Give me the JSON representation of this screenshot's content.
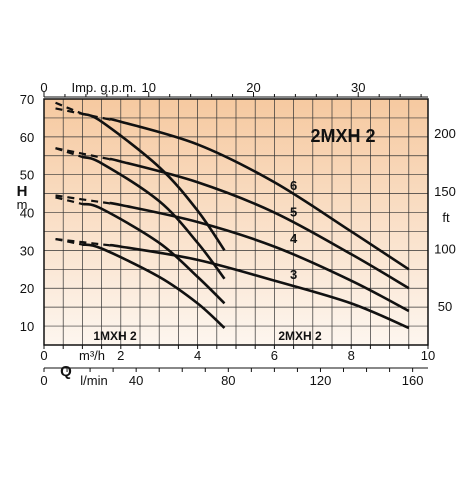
{
  "chart_data": {
    "type": "line",
    "title": "2MXH 2",
    "bg_gradient": [
      "#f6c9a0",
      "#fdf6ef"
    ],
    "ylabel_left": [
      "H",
      "m"
    ],
    "ylabel_right": "ft",
    "top_axis_label": "Imp. g.p.m.",
    "q_label": "Q",
    "unit_m3h": "m³/h",
    "unit_lmin": "l/min",
    "region_labels": [
      "1MXH 2",
      "2MXH 2"
    ],
    "xlim_m3h": [
      0,
      10
    ],
    "ylim_m": [
      5,
      70
    ],
    "ticks": {
      "left": [
        "10",
        "20",
        "30",
        "40",
        "50",
        "60",
        "70"
      ],
      "right": [
        "50",
        "100",
        "150",
        "200"
      ],
      "top": [
        "0",
        "10",
        "20",
        "30"
      ],
      "bottom_m3h": [
        "0",
        "2",
        "4",
        "6",
        "8",
        "10"
      ],
      "bottom_lmin": [
        "0",
        "40",
        "80",
        "120",
        "160"
      ]
    },
    "series": [
      {
        "name": "6",
        "points": [
          [
            0.3,
            67.5
          ],
          [
            2,
            64
          ],
          [
            4,
            58
          ],
          [
            6,
            48
          ],
          [
            8,
            35
          ],
          [
            9.5,
            25
          ]
        ],
        "dashed_until": 1.7
      },
      {
        "name": "5",
        "points": [
          [
            0.3,
            57
          ],
          [
            2,
            53.5
          ],
          [
            4,
            48
          ],
          [
            6,
            40
          ],
          [
            8,
            29
          ],
          [
            9.5,
            20
          ]
        ],
        "dashed_until": 1.7
      },
      {
        "name": "4",
        "points": [
          [
            0.3,
            44.5
          ],
          [
            2,
            42
          ],
          [
            4,
            37.5
          ],
          [
            6,
            31
          ],
          [
            8,
            22
          ],
          [
            9.5,
            14
          ]
        ],
        "dashed_until": 1.7
      },
      {
        "name": "3",
        "points": [
          [
            0.3,
            33
          ],
          [
            2,
            31
          ],
          [
            4,
            27.5
          ],
          [
            6,
            22
          ],
          [
            8,
            16
          ],
          [
            9.5,
            9.5
          ]
        ],
        "dashed_until": 1.7
      },
      {
        "points": [
          [
            0.3,
            69
          ],
          [
            1.5,
            64
          ],
          [
            3,
            52
          ],
          [
            4,
            40.5
          ],
          [
            4.7,
            30
          ]
        ],
        "dashed_until": 1.0
      },
      {
        "points": [
          [
            0.3,
            57
          ],
          [
            1.5,
            53
          ],
          [
            3,
            43
          ],
          [
            4,
            32
          ],
          [
            4.7,
            22.5
          ]
        ],
        "dashed_until": 1.0
      },
      {
        "points": [
          [
            0.3,
            44
          ],
          [
            1.5,
            41
          ],
          [
            3,
            32
          ],
          [
            4,
            23
          ],
          [
            4.7,
            16
          ]
        ],
        "dashed_until": 1.0
      },
      {
        "points": [
          [
            0.3,
            33
          ],
          [
            1.5,
            30.5
          ],
          [
            3,
            23
          ],
          [
            4,
            16
          ],
          [
            4.7,
            9.5
          ]
        ],
        "dashed_until": 1.0
      }
    ],
    "curve_labels": [
      {
        "text": "6",
        "at": [
          6.5,
          47
        ]
      },
      {
        "text": "5",
        "at": [
          6.5,
          40
        ]
      },
      {
        "text": "4",
        "at": [
          6.5,
          33
        ]
      },
      {
        "text": "3",
        "at": [
          6.5,
          23.5
        ]
      }
    ]
  }
}
